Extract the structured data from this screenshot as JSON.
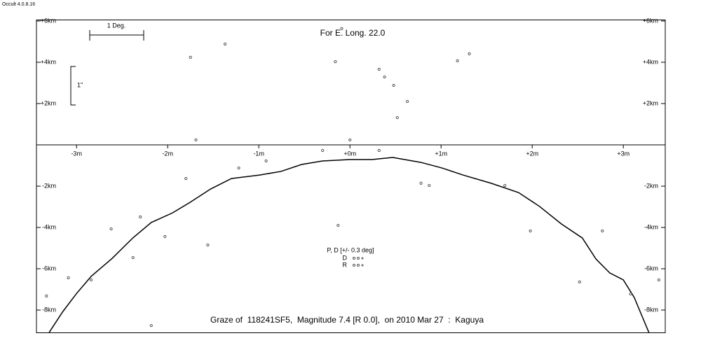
{
  "app_label": "Occult 4.0.8.16",
  "chart_data": {
    "type": "scatter",
    "title": "Graze of  118241SF5,  Magnitude 7.4 [R 0.0],  on 2010 Mar 27  :  Kaguya",
    "subtitle": "For E. Long. 22.0",
    "scale_labels": [
      "1 Deg.",
      "1\""
    ],
    "legend_title": "P, D [+/- 0.3 deg]",
    "legend_labels": [
      "D",
      "R"
    ],
    "xlim": [
      -3.44,
      3.46
    ],
    "ylim": [
      -9.1,
      6.05
    ],
    "xticks": [
      {
        "value": -3,
        "label": "-3m"
      },
      {
        "value": -2,
        "label": "-2m"
      },
      {
        "value": -1,
        "label": "-1m"
      },
      {
        "value": 0,
        "label": "+0m"
      },
      {
        "value": 1,
        "label": "+1m"
      },
      {
        "value": 2,
        "label": "+2m"
      },
      {
        "value": 3,
        "label": "+3m"
      }
    ],
    "yticks": [
      {
        "value": 6,
        "label": "+6km"
      },
      {
        "value": 4,
        "label": "+4km"
      },
      {
        "value": 2,
        "label": "+2km"
      },
      {
        "value": -2,
        "label": "-2km"
      },
      {
        "value": -4,
        "label": "-4km"
      },
      {
        "value": -6,
        "label": "-6km"
      },
      {
        "value": -8,
        "label": "-8km"
      }
    ],
    "series": [
      {
        "style": "line",
        "color": "#000000",
        "x": [
          -3.3,
          -3.15,
          -3.0,
          -2.84,
          -2.61,
          -2.38,
          -2.18,
          -1.95,
          -1.76,
          -1.53,
          -1.3,
          -0.99,
          -0.76,
          -0.53,
          -0.3,
          0,
          0.24,
          0.47,
          0.78,
          1.01,
          1.24,
          1.55,
          1.85,
          2.08,
          2.32,
          2.55,
          2.7,
          2.85,
          3.0,
          3.12,
          3.2,
          3.28
        ],
        "values": [
          -9.08,
          -8.07,
          -7.2,
          -6.37,
          -5.5,
          -4.5,
          -3.76,
          -3.3,
          -2.8,
          -2.14,
          -1.63,
          -1.46,
          -1.29,
          -0.95,
          -0.78,
          -0.71,
          -0.71,
          -0.61,
          -0.85,
          -1.12,
          -1.46,
          -1.86,
          -2.31,
          -2.98,
          -3.83,
          -4.51,
          -5.53,
          -6.2,
          -6.54,
          -7.39,
          -8.24,
          -9.08
        ]
      },
      {
        "style": "points",
        "color": "#555555",
        "x": [
          -1.75,
          -1.37,
          -0.16,
          -0.09,
          0.32,
          0.38,
          0.48,
          0.63,
          0.52,
          1.18,
          1.31,
          -1.69,
          0,
          -0.13,
          -2.62,
          -1.56,
          -3.09,
          -3.33,
          -2.18,
          3.39,
          2.52,
          1.98,
          -2.03,
          -2.38,
          0.78,
          0.87,
          -1.22,
          -1.8,
          -0.92,
          -0.3,
          0.32,
          1.7,
          2.77,
          -2.3,
          -2.84,
          3.08
        ],
        "values": [
          4.24,
          4.88,
          4.03,
          5.63,
          3.66,
          3.29,
          2.88,
          2.1,
          1.32,
          4.07,
          4.41,
          0.24,
          0.24,
          -3.9,
          -4.07,
          -4.85,
          -6.44,
          -7.32,
          -8.75,
          -6.54,
          -6.64,
          -4.17,
          -4.44,
          -5.46,
          -1.86,
          -1.97,
          -1.12,
          -1.63,
          -0.78,
          -0.27,
          -0.27,
          -1.97,
          -4.17,
          -3.49,
          -6.54,
          -7.22
        ]
      }
    ]
  }
}
